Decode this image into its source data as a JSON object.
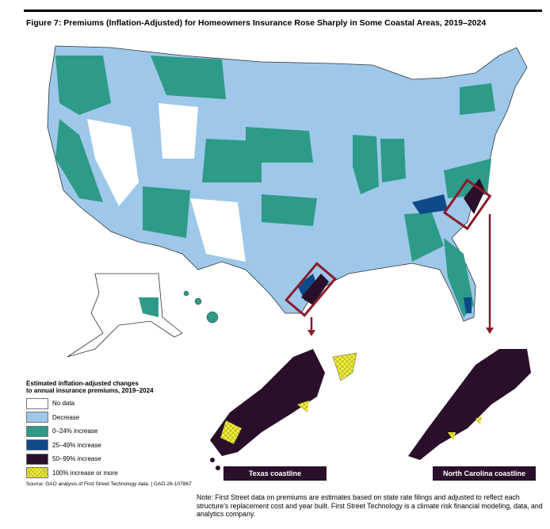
{
  "title": "Figure 7: Premiums (Inflation-Adjusted) for Homeowners Insurance Rose Sharply in Some Coastal Areas, 2019–2024",
  "colors": {
    "no_data": "#ffffff",
    "decrease": "#9dc8ea",
    "inc_0_24": "#2e9a88",
    "inc_25_49": "#0e4a8a",
    "inc_50_99": "#2a0f2a",
    "inc_100": "#f2ee3c",
    "highlight": "#8b1a2a"
  },
  "legend": {
    "title_line1": "Estimated inflation-adjusted changes",
    "title_line2": "to annual insurance premiums, 2019–2024",
    "items": [
      {
        "label": "No data",
        "color": "#ffffff"
      },
      {
        "label": "Decrease",
        "color": "#9dc8ea"
      },
      {
        "label": "0–24% increase",
        "color": "#2e9a88"
      },
      {
        "label": "25–49% increase",
        "color": "#0e4a8a"
      },
      {
        "label": "50–99% increase",
        "color": "#2a0f2a"
      },
      {
        "label": "100% increase or more",
        "color": "#f2ee3c"
      }
    ]
  },
  "insets": {
    "texas": "Texas coastline",
    "north_carolina": "North Carolina coastline"
  },
  "source": "Source: GAO analysis of First Street Technology data.  |  GAO-26-107867",
  "note": "Note: First Street data on premiums are estimates based on state rate filings and adjusted to reflect each structure's replacement cost and year built. First Street Technology is a climate risk financial modeling, data, and analytics company."
}
